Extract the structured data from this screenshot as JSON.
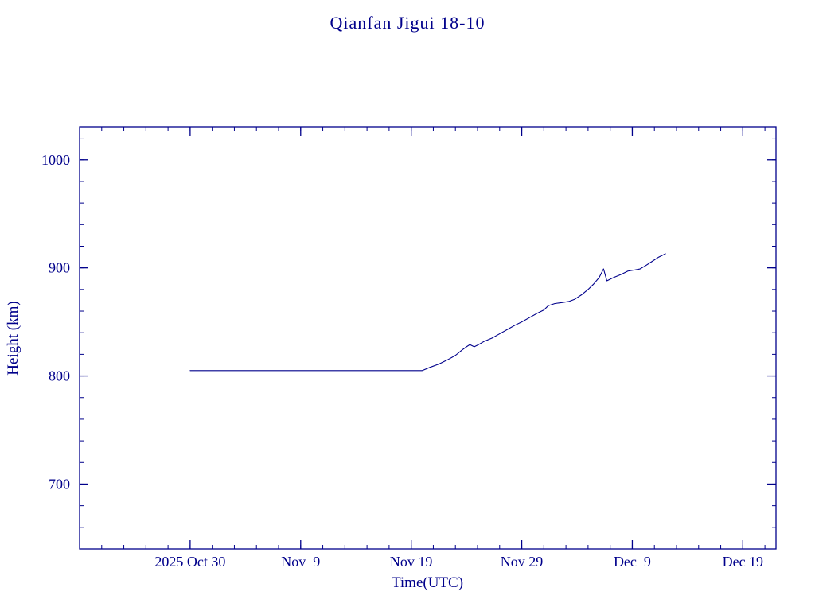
{
  "page": {
    "title": "Qianfan Jigui 18-10"
  },
  "chart_data": {
    "type": "line",
    "title": "Qianfan Jigui 18-10",
    "xlabel": "Time(UTC)",
    "ylabel": "Height (km)",
    "line_color": "#00008b",
    "background_color": "#ffffff",
    "x_unit": "days since 2025 Oct 30 (UTC)",
    "x_range": [
      -10,
      53
    ],
    "y_range": [
      640,
      1030
    ],
    "x_major_ticks": [
      {
        "value": 0,
        "label": "2025 Oct 30"
      },
      {
        "value": 10,
        "label": "Nov  9"
      },
      {
        "value": 20,
        "label": "Nov 19"
      },
      {
        "value": 30,
        "label": "Nov 29"
      },
      {
        "value": 40,
        "label": "Dec  9"
      },
      {
        "value": 50,
        "label": "Dec 19"
      }
    ],
    "x_minor_step": 2,
    "y_major_ticks": [
      {
        "value": 700,
        "label": "700"
      },
      {
        "value": 800,
        "label": "800"
      },
      {
        "value": 900,
        "label": "900"
      },
      {
        "value": 1000,
        "label": "1000"
      }
    ],
    "y_minor_step": 20,
    "grid": false,
    "legend": false,
    "series": [
      {
        "name": "height-km",
        "points": [
          [
            0,
            805
          ],
          [
            5,
            805
          ],
          [
            10,
            805
          ],
          [
            15,
            805
          ],
          [
            21,
            805
          ],
          [
            21.7,
            808
          ],
          [
            22.5,
            811
          ],
          [
            23.3,
            815
          ],
          [
            24,
            819
          ],
          [
            24.6,
            824
          ],
          [
            25.0,
            827
          ],
          [
            25.3,
            829
          ],
          [
            25.7,
            827
          ],
          [
            26.1,
            829
          ],
          [
            26.6,
            832
          ],
          [
            27.3,
            835
          ],
          [
            28,
            839
          ],
          [
            28.7,
            843
          ],
          [
            29.4,
            847
          ],
          [
            30,
            850
          ],
          [
            30.7,
            854
          ],
          [
            31.4,
            858
          ],
          [
            32,
            861
          ],
          [
            32.4,
            865
          ],
          [
            33,
            867
          ],
          [
            33.7,
            868
          ],
          [
            34.3,
            869
          ],
          [
            34.8,
            871
          ],
          [
            35.4,
            875
          ],
          [
            36,
            880
          ],
          [
            36.5,
            885
          ],
          [
            37,
            891
          ],
          [
            37.4,
            899
          ],
          [
            37.7,
            888
          ],
          [
            38.3,
            891
          ],
          [
            39,
            894
          ],
          [
            39.6,
            897
          ],
          [
            40.2,
            898
          ],
          [
            40.7,
            899
          ],
          [
            41.2,
            902
          ],
          [
            41.8,
            906
          ],
          [
            42.4,
            910
          ],
          [
            43,
            913
          ]
        ]
      }
    ]
  }
}
